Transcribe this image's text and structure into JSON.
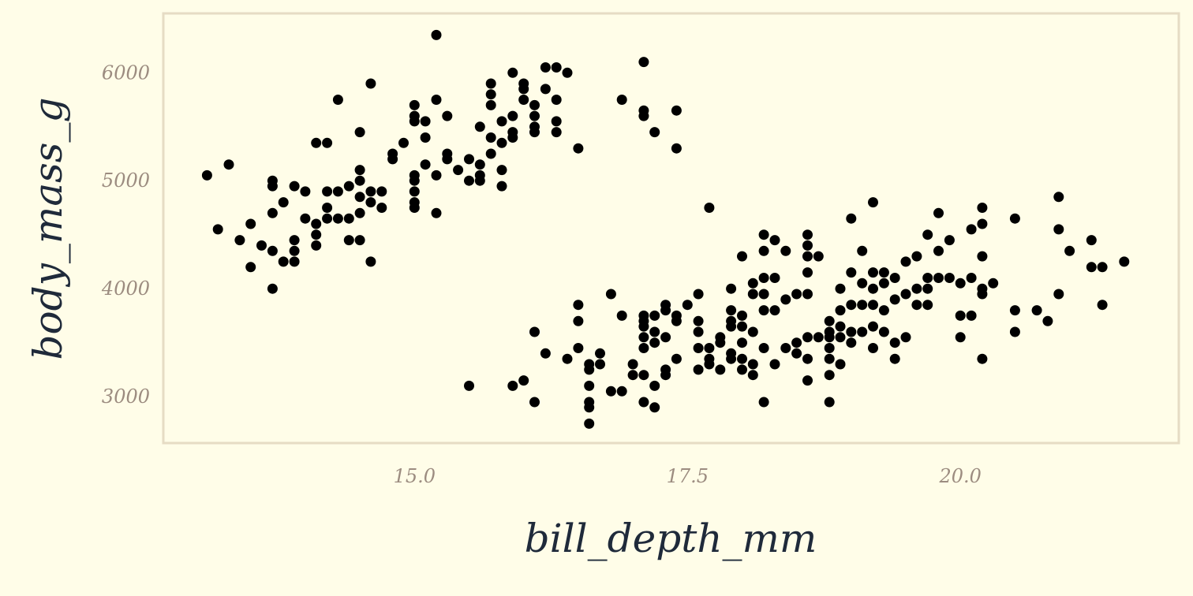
{
  "chart_data": {
    "type": "scatter",
    "title": "",
    "xlabel": "bill_depth_mm",
    "ylabel": "body_mass_g",
    "xlim": [
      12.7,
      22.0
    ],
    "ylim": [
      2570,
      6550
    ],
    "x_ticks": [
      15.0,
      17.5,
      20.0
    ],
    "x_tick_labels": [
      "15.0",
      "17.5",
      "20.0"
    ],
    "y_ticks": [
      3000,
      4000,
      5000,
      6000
    ],
    "y_tick_labels": [
      "3000",
      "4000",
      "5000",
      "6000"
    ],
    "grid": false,
    "legend": "none",
    "point_color": "#000000",
    "panel_border_color": "#e6dcc4",
    "background_color": "#fffde8",
    "points": [
      [
        13.1,
        5050
      ],
      [
        13.2,
        4550
      ],
      [
        13.3,
        5150
      ],
      [
        13.4,
        4450
      ],
      [
        13.5,
        4600
      ],
      [
        13.5,
        4200
      ],
      [
        13.6,
        4400
      ],
      [
        13.7,
        4350
      ],
      [
        13.7,
        4700
      ],
      [
        13.7,
        4950
      ],
      [
        13.7,
        5000
      ],
      [
        13.7,
        4000
      ],
      [
        13.8,
        4800
      ],
      [
        13.8,
        4250
      ],
      [
        13.9,
        4350
      ],
      [
        13.9,
        4450
      ],
      [
        13.9,
        4950
      ],
      [
        13.9,
        4250
      ],
      [
        14.0,
        4650
      ],
      [
        14.0,
        4900
      ],
      [
        14.1,
        5350
      ],
      [
        14.1,
        4500
      ],
      [
        14.1,
        4400
      ],
      [
        14.2,
        4900
      ],
      [
        14.2,
        4750
      ],
      [
        14.2,
        5350
      ],
      [
        14.2,
        4650
      ],
      [
        14.3,
        4650
      ],
      [
        14.3,
        4900
      ],
      [
        14.3,
        5750
      ],
      [
        14.4,
        4950
      ],
      [
        14.4,
        4450
      ],
      [
        14.4,
        4650
      ],
      [
        14.5,
        4850
      ],
      [
        14.5,
        4450
      ],
      [
        14.5,
        4700
      ],
      [
        14.5,
        5450
      ],
      [
        14.5,
        5000
      ],
      [
        14.5,
        5100
      ],
      [
        14.6,
        4800
      ],
      [
        14.6,
        4900
      ],
      [
        14.6,
        5900
      ],
      [
        14.6,
        4250
      ],
      [
        14.7,
        4750
      ],
      [
        14.7,
        4900
      ],
      [
        14.8,
        5200
      ],
      [
        14.8,
        5250
      ],
      [
        14.9,
        5350
      ],
      [
        15.0,
        5550
      ],
      [
        15.0,
        5600
      ],
      [
        15.0,
        5700
      ],
      [
        15.0,
        5000
      ],
      [
        15.0,
        4900
      ],
      [
        15.0,
        4750
      ],
      [
        15.0,
        4800
      ],
      [
        15.0,
        5050
      ],
      [
        15.1,
        5400
      ],
      [
        15.1,
        5550
      ],
      [
        15.1,
        5150
      ],
      [
        15.2,
        5750
      ],
      [
        15.2,
        5050
      ],
      [
        15.2,
        4700
      ],
      [
        15.3,
        5600
      ],
      [
        15.3,
        5250
      ],
      [
        15.3,
        5200
      ],
      [
        15.4,
        5100
      ],
      [
        15.5,
        5200
      ],
      [
        15.5,
        5000
      ],
      [
        15.6,
        5150
      ],
      [
        15.6,
        5050
      ],
      [
        15.6,
        5500
      ],
      [
        15.7,
        5900
      ],
      [
        15.7,
        5800
      ],
      [
        15.7,
        5700
      ],
      [
        15.7,
        5400
      ],
      [
        15.7,
        5250
      ],
      [
        15.8,
        5550
      ],
      [
        15.8,
        5350
      ],
      [
        15.8,
        5100
      ],
      [
        15.8,
        4950
      ],
      [
        15.9,
        6000
      ],
      [
        15.9,
        5600
      ],
      [
        15.9,
        5450
      ],
      [
        15.9,
        5400
      ],
      [
        16.0,
        5900
      ],
      [
        16.0,
        5850
      ],
      [
        16.0,
        5750
      ],
      [
        16.1,
        5700
      ],
      [
        16.1,
        5600
      ],
      [
        16.1,
        5500
      ],
      [
        16.1,
        5450
      ],
      [
        16.2,
        6050
      ],
      [
        16.2,
        5850
      ],
      [
        16.3,
        6050
      ],
      [
        16.3,
        5750
      ],
      [
        16.3,
        5550
      ],
      [
        16.3,
        5450
      ],
      [
        16.4,
        6000
      ],
      [
        16.5,
        5300
      ],
      [
        17.1,
        6100
      ],
      [
        17.1,
        5650
      ],
      [
        17.1,
        5600
      ],
      [
        16.9,
        5750
      ],
      [
        17.2,
        5450
      ],
      [
        17.4,
        5650
      ],
      [
        17.4,
        5300
      ],
      [
        15.2,
        6350
      ],
      [
        15.5,
        3100
      ],
      [
        15.9,
        3100
      ],
      [
        16.0,
        3150
      ],
      [
        16.1,
        3600
      ],
      [
        16.1,
        2950
      ],
      [
        16.2,
        3400
      ],
      [
        16.4,
        3350
      ],
      [
        16.5,
        3450
      ],
      [
        16.5,
        3700
      ],
      [
        16.5,
        3850
      ],
      [
        16.6,
        3250
      ],
      [
        16.6,
        3300
      ],
      [
        16.6,
        3100
      ],
      [
        16.6,
        2950
      ],
      [
        16.6,
        2900
      ],
      [
        16.6,
        2750
      ],
      [
        16.7,
        3300
      ],
      [
        16.7,
        3400
      ],
      [
        16.8,
        3050
      ],
      [
        16.8,
        3950
      ],
      [
        16.9,
        3750
      ],
      [
        16.9,
        3050
      ],
      [
        17.0,
        3200
      ],
      [
        17.0,
        3300
      ],
      [
        17.1,
        3200
      ],
      [
        17.1,
        3450
      ],
      [
        17.1,
        3550
      ],
      [
        17.1,
        3650
      ],
      [
        17.1,
        3700
      ],
      [
        17.1,
        3750
      ],
      [
        17.1,
        2950
      ],
      [
        17.2,
        3100
      ],
      [
        17.2,
        3500
      ],
      [
        17.2,
        3600
      ],
      [
        17.2,
        3750
      ],
      [
        17.2,
        2900
      ],
      [
        17.3,
        3250
      ],
      [
        17.3,
        3550
      ],
      [
        17.3,
        3800
      ],
      [
        17.3,
        3850
      ],
      [
        17.3,
        3200
      ],
      [
        17.4,
        3350
      ],
      [
        17.4,
        3700
      ],
      [
        17.4,
        3750
      ],
      [
        17.5,
        3850
      ],
      [
        17.6,
        3250
      ],
      [
        17.6,
        3450
      ],
      [
        17.6,
        3600
      ],
      [
        17.6,
        3700
      ],
      [
        17.6,
        3950
      ],
      [
        17.7,
        3350
      ],
      [
        17.7,
        3300
      ],
      [
        17.7,
        3450
      ],
      [
        17.7,
        4750
      ],
      [
        17.8,
        3250
      ],
      [
        17.8,
        3550
      ],
      [
        17.9,
        3400
      ],
      [
        17.9,
        3350
      ],
      [
        17.9,
        3700
      ],
      [
        17.9,
        3800
      ],
      [
        17.9,
        4000
      ],
      [
        17.9,
        3650
      ],
      [
        18.0,
        3250
      ],
      [
        18.0,
        3350
      ],
      [
        18.0,
        3500
      ],
      [
        18.0,
        3650
      ],
      [
        18.0,
        3750
      ],
      [
        18.0,
        4300
      ],
      [
        18.1,
        3200
      ],
      [
        18.1,
        3300
      ],
      [
        18.1,
        3600
      ],
      [
        18.1,
        3950
      ],
      [
        18.1,
        4050
      ],
      [
        18.2,
        2950
      ],
      [
        18.2,
        3450
      ],
      [
        18.2,
        3800
      ],
      [
        18.2,
        3950
      ],
      [
        18.2,
        4100
      ],
      [
        18.2,
        4350
      ],
      [
        18.2,
        4500
      ],
      [
        18.3,
        3300
      ],
      [
        18.3,
        3800
      ],
      [
        18.3,
        4100
      ],
      [
        18.3,
        4450
      ],
      [
        18.4,
        3450
      ],
      [
        18.4,
        3900
      ],
      [
        18.4,
        4350
      ],
      [
        18.5,
        3400
      ],
      [
        18.5,
        3500
      ],
      [
        18.5,
        3950
      ],
      [
        18.6,
        3350
      ],
      [
        18.6,
        3550
      ],
      [
        18.6,
        3950
      ],
      [
        18.6,
        4150
      ],
      [
        18.6,
        4300
      ],
      [
        18.6,
        4400
      ],
      [
        18.6,
        4500
      ],
      [
        18.6,
        3150
      ],
      [
        18.7,
        3550
      ],
      [
        18.7,
        4300
      ],
      [
        18.8,
        3450
      ],
      [
        18.8,
        3550
      ],
      [
        18.8,
        3600
      ],
      [
        18.8,
        3700
      ],
      [
        18.8,
        3200
      ],
      [
        18.8,
        3350
      ],
      [
        18.8,
        2950
      ],
      [
        18.9,
        3300
      ],
      [
        18.9,
        3550
      ],
      [
        18.9,
        3650
      ],
      [
        18.9,
        3800
      ],
      [
        19.0,
        3500
      ],
      [
        19.0,
        3600
      ],
      [
        19.0,
        3850
      ],
      [
        19.0,
        4150
      ],
      [
        19.0,
        4650
      ],
      [
        19.1,
        3600
      ],
      [
        19.1,
        3850
      ],
      [
        19.1,
        4050
      ],
      [
        19.1,
        4350
      ],
      [
        19.2,
        3450
      ],
      [
        19.2,
        3650
      ],
      [
        19.2,
        3850
      ],
      [
        19.2,
        4000
      ],
      [
        19.2,
        4150
      ],
      [
        19.2,
        4800
      ],
      [
        19.3,
        3600
      ],
      [
        19.3,
        3800
      ],
      [
        19.3,
        4050
      ],
      [
        19.3,
        4150
      ],
      [
        19.4,
        3350
      ],
      [
        19.4,
        3500
      ],
      [
        19.4,
        3900
      ],
      [
        19.4,
        4100
      ],
      [
        19.5,
        3550
      ],
      [
        19.5,
        3950
      ],
      [
        19.5,
        4250
      ],
      [
        19.6,
        3850
      ],
      [
        19.6,
        4000
      ],
      [
        19.6,
        4300
      ],
      [
        19.7,
        3850
      ],
      [
        19.7,
        4000
      ],
      [
        19.7,
        4100
      ],
      [
        19.7,
        4500
      ],
      [
        19.8,
        4100
      ],
      [
        19.8,
        4350
      ],
      [
        19.8,
        4700
      ],
      [
        19.9,
        4100
      ],
      [
        19.9,
        4450
      ],
      [
        20.0,
        3550
      ],
      [
        20.0,
        3750
      ],
      [
        20.0,
        4050
      ],
      [
        20.1,
        3750
      ],
      [
        20.1,
        4100
      ],
      [
        20.1,
        4550
      ],
      [
        20.2,
        4000
      ],
      [
        20.2,
        3950
      ],
      [
        20.2,
        3350
      ],
      [
        20.2,
        4300
      ],
      [
        20.2,
        4600
      ],
      [
        20.2,
        4750
      ],
      [
        20.3,
        4050
      ],
      [
        20.5,
        3600
      ],
      [
        20.5,
        3800
      ],
      [
        20.5,
        4650
      ],
      [
        20.7,
        3800
      ],
      [
        20.8,
        3700
      ],
      [
        20.9,
        3950
      ],
      [
        20.9,
        4550
      ],
      [
        20.9,
        4850
      ],
      [
        21.0,
        4350
      ],
      [
        21.2,
        4450
      ],
      [
        21.2,
        4200
      ],
      [
        21.3,
        4200
      ],
      [
        21.3,
        3850
      ],
      [
        21.5,
        4250
      ],
      [
        15.6,
        5000
      ],
      [
        14.1,
        4600
      ],
      [
        18.9,
        4000
      ],
      [
        17.8,
        3500
      ]
    ]
  }
}
